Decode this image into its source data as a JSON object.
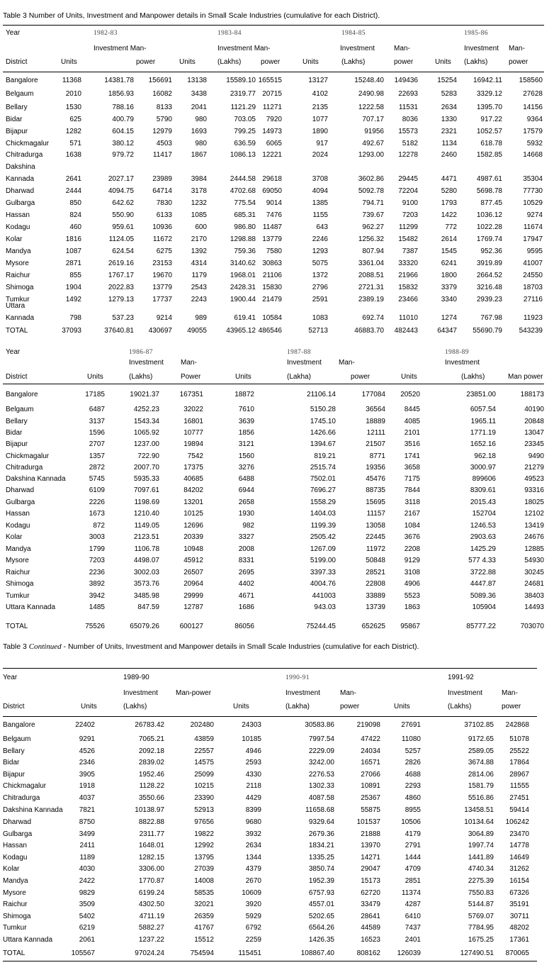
{
  "caption1": "Table 3 Number of Units, Investment and Manpower details in Small Scale Industries (cumulative for each District).",
  "caption2_prefix": "Table 3",
  "caption2_em": "Continued",
  "caption2_rest": "- Number of Units, Investment and Manpower details in Small Scale Industries (cumulative for each District).",
  "labels": {
    "year": "Year",
    "district": "District",
    "units": "Units",
    "investment": "Investment",
    "investment_man": "Investment Man-",
    "man": "Man-",
    "man_power_hyph": "Man-power",
    "power": "power",
    "power_cap": "Power",
    "man_power": "Man power",
    "lakhs": "(Lakhs)",
    "lakha": "(Lakha)"
  },
  "years": [
    "1982-83",
    "1983-84",
    "1984-85",
    "1985-86",
    "1986-87",
    "1987-88",
    "1988-89",
    "1989-90",
    "1990-91",
    "1991-92"
  ],
  "section1_rows": [
    {
      "district": "Bangalore",
      "v": [
        "11368",
        "14381.78",
        "156691",
        "13138",
        "15589.10",
        "165515",
        "13127",
        "15248.40",
        "149436",
        "15254",
        "16942.11",
        "158560"
      ]
    },
    {
      "district": "Belgaum",
      "v": [
        "2010",
        "1856.93",
        "16082",
        "3438",
        "2319.77",
        "20715",
        "4102",
        "2490.98",
        "22693",
        "5283",
        "3329.12",
        "27628"
      ]
    },
    {
      "district": "Bellary",
      "v": [
        "1530",
        "788.16",
        "8133",
        "2041",
        "1121.29",
        "11271",
        "2135",
        "1222.58",
        "11531",
        "2634",
        "1395.70",
        "14156"
      ]
    },
    {
      "district": "Bidar",
      "v": [
        "625",
        "400.79",
        "5790",
        "980",
        "703.05",
        "7920",
        "1077",
        "707.17",
        "8036",
        "1330",
        "917.22",
        "9364"
      ]
    },
    {
      "district": "Bijapur",
      "v": [
        "1282",
        "604.15",
        "12979",
        "1693",
        "799.25",
        "14973",
        "1890",
        "91956",
        "15573",
        "2321",
        "1052.57",
        "17579"
      ]
    },
    {
      "district": "Chickmagalur",
      "v": [
        "571",
        "380.12",
        "4503",
        "980",
        "636.59",
        "6065",
        "917",
        "492.67",
        "5182",
        "1134",
        "618.78",
        "5932"
      ]
    },
    {
      "district": "Chitradurga",
      "v": [
        "1638",
        "979.72",
        "11417",
        "1867",
        "1086.13",
        "12221",
        "2024",
        "1293.00",
        "12278",
        "2460",
        "1582.85",
        "14668"
      ]
    },
    {
      "district": "Dakshina",
      "v": [
        "",
        "",
        "",
        "",
        "",
        "",
        "",
        "",
        "",
        "",
        "",
        ""
      ]
    },
    {
      "district": "Kannada",
      "v": [
        "2641",
        "2027.17",
        "23989",
        "3984",
        "2444.58",
        "29618",
        "3708",
        "3602.86",
        "29445",
        "4471",
        "4987.61",
        "35304"
      ]
    },
    {
      "district": "Dharwad",
      "v": [
        "2444",
        "4094.75",
        "64714",
        "3178",
        "4702.68",
        "69050",
        "4094",
        "5092.78",
        "72204",
        "5280",
        "5698.78",
        "77730"
      ]
    },
    {
      "district": "Gulbarga",
      "v": [
        "850",
        "642.62",
        "7830",
        "1232",
        "775.54",
        "9014",
        "1385",
        "794.71",
        "9100",
        "1793",
        "877.45",
        "10529"
      ]
    },
    {
      "district": "Hassan",
      "v": [
        "824",
        "550.90",
        "6133",
        "1085",
        "685.31",
        "7476",
        "1155",
        "739.67",
        "7203",
        "1422",
        "1036.12",
        "9274"
      ]
    },
    {
      "district": "Kodagu",
      "v": [
        "460",
        "959.61",
        "10936",
        "600",
        "986.80",
        "11487",
        "643",
        "962.27",
        "11299",
        "772",
        "1022.28",
        "11674"
      ]
    },
    {
      "district": "Kolar",
      "v": [
        "1816",
        "1124.05",
        "11672",
        "2170",
        "1298.88",
        "13779",
        "2246",
        "1256.32",
        "15482",
        "2614",
        "1769.74",
        "17947"
      ]
    },
    {
      "district": "Mandya",
      "v": [
        "1087",
        "624.54",
        "6275",
        "1392",
        "759.36",
        "7580",
        "1293",
        "807.94",
        "7387",
        "1545",
        "952.36",
        "9595"
      ]
    },
    {
      "district": "Mysore",
      "v": [
        "2871",
        "2619.16",
        "23153",
        "4314",
        "3140.62",
        "30863",
        "5075",
        "3361.04",
        "33320",
        "6241",
        "3919.89",
        "41007"
      ]
    },
    {
      "district": "Raichur",
      "v": [
        "855",
        "1767.17",
        "19670",
        "1179",
        "1968.01",
        "21106",
        "1372",
        "2088.51",
        "21966",
        "1800",
        "2664.52",
        "24550"
      ]
    },
    {
      "district": "Shimoga",
      "v": [
        "1904",
        "2022.83",
        "13779",
        "2543",
        "2428.31",
        "15830",
        "2796",
        "2721.31",
        "15832",
        "3379",
        "3216.48",
        "18703"
      ]
    },
    {
      "district": "Tumkur",
      "v": [
        "1492",
        "1279.13",
        "17737",
        "2243",
        "1900.44",
        "21479",
        "2591",
        "2389.19",
        "23466",
        "3340",
        "2939.23",
        "27116"
      ]
    },
    {
      "district": "Uttara",
      "v": [
        "",
        "",
        "",
        "",
        "",
        "",
        "",
        "",
        "",
        "",
        "",
        ""
      ]
    },
    {
      "district": "Kannada",
      "v": [
        "798",
        "537.23",
        "9214",
        "989",
        "619.41",
        "10584",
        "1083",
        "692.74",
        "11010",
        "1274",
        "767.98",
        "11923"
      ]
    },
    {
      "district": "TOTAL",
      "v": [
        "37093",
        "37640.81",
        "430697",
        "49055",
        "43965.12",
        "486546",
        "52713",
        "46883.70",
        "482443",
        "64347",
        "55690.79",
        "543239"
      ]
    }
  ],
  "section2_rows": [
    {
      "district": "Bangalore",
      "v": [
        "17185",
        "19021.37",
        "167351",
        "18872",
        "21106.14",
        "177084",
        "20520",
        "23851.00",
        "188173"
      ]
    },
    {
      "district": "Belgaum",
      "v": [
        "6487",
        "4252.23",
        "32022",
        "7610",
        "5150.28",
        "36564",
        "8445",
        "6057.54",
        "40190"
      ]
    },
    {
      "district": "Bellary",
      "v": [
        "3137",
        "1543.34",
        "16801",
        "3639",
        "1745.10",
        "18889",
        "4085",
        "1965.11",
        "20848"
      ]
    },
    {
      "district": "Bidar",
      "v": [
        "1596",
        "1065.92",
        "10777",
        "1856",
        "1426.66",
        "12111",
        "2101",
        "1771.19",
        "13047"
      ]
    },
    {
      "district": "Bijapur",
      "v": [
        "2707",
        "1237.00",
        "19894",
        "3121",
        "1394.67",
        "21507",
        "3516",
        "1652.16",
        "23345"
      ]
    },
    {
      "district": "Chickmagalur",
      "v": [
        "1357",
        "722.90",
        "7542",
        "1560",
        "819.21",
        "8771",
        "1741",
        "962.18",
        "9490"
      ]
    },
    {
      "district": "Chitradurga",
      "v": [
        "2872",
        "2007.70",
        "17375",
        "3276",
        "2515.74",
        "19356",
        "3658",
        "3000.97",
        "21279"
      ]
    },
    {
      "district": "Dakshina Kannada",
      "v": [
        "5745",
        "5935.33",
        "40685",
        "6488",
        "7502.01",
        "45476",
        "7175",
        "899606",
        "49523"
      ]
    },
    {
      "district": "Dharwad",
      "v": [
        "6109",
        "7097.61",
        "84202",
        "6944",
        "7696.27",
        "88735",
        "7844",
        "8309.61",
        "93316"
      ]
    },
    {
      "district": "Gulbarga",
      "v": [
        "2226",
        "1198.69",
        "13201",
        "2658",
        "1558.29",
        "15695",
        "3118",
        "2015.43",
        "18025"
      ]
    },
    {
      "district": "Hassan",
      "v": [
        "1673",
        "1210.40",
        "10125",
        "1930",
        "1404.03",
        "11157",
        "2167",
        "152704",
        "12102"
      ]
    },
    {
      "district": "Kodagu",
      "v": [
        "872",
        "1149.05",
        "12696",
        "982",
        "1199.39",
        "13058",
        "1084",
        "1246.53",
        "13419"
      ]
    },
    {
      "district": "Kolar",
      "v": [
        "3003",
        "2123.51",
        "20339",
        "3327",
        "2505.42",
        "22445",
        "3676",
        "2903.63",
        "24676"
      ]
    },
    {
      "district": "Mandya",
      "v": [
        "1799",
        "1106.78",
        "10948",
        "2008",
        "1267.09",
        "11972",
        "2208",
        "1425.29",
        "12885"
      ]
    },
    {
      "district": "Mysore",
      "v": [
        "7203",
        "4498.07",
        "45912",
        "8331",
        "5199.00",
        "50848",
        "9129",
        "577 4.33",
        "54930"
      ]
    },
    {
      "district": "Raichur",
      "v": [
        "2236",
        "3002.03",
        "26507",
        "2695",
        "3397.33",
        "28521",
        "3108",
        "3722.88",
        "30245"
      ]
    },
    {
      "district": "Shimoga",
      "v": [
        "3892",
        "3573.76",
        "20964",
        "4402",
        "4004.76",
        "22808",
        "4906",
        "4447.87",
        "24681"
      ]
    },
    {
      "district": "Tumkur",
      "v": [
        "3942",
        "3485.98",
        "29999",
        "4671",
        "441003",
        "33889",
        "5523",
        "5089.36",
        "38403"
      ]
    },
    {
      "district": "Uttara Kannada",
      "v": [
        "1485",
        "847.59",
        "12787",
        "1686",
        "943.03",
        "13739",
        "1863",
        "105904",
        "14493"
      ]
    },
    {
      "district": "TOTAL",
      "v": [
        "75526",
        "65079.26",
        "600127",
        "86056",
        "75244.45",
        "652625",
        "95867",
        "85777.22",
        "703070"
      ]
    }
  ],
  "section3_rows": [
    {
      "district": "Bangalore",
      "v": [
        "22402",
        "26783.42",
        "202480",
        "24303",
        "30583.86",
        "219098",
        "27691",
        "37102.85",
        "242868"
      ]
    },
    {
      "district": "Belgaum",
      "v": [
        "9291",
        "7065.21",
        "43859",
        "10185",
        "7997.54",
        "47422",
        "11080",
        "9172.65",
        "51078"
      ]
    },
    {
      "district": "Bellary",
      "v": [
        "4526",
        "2092.18",
        "22557",
        "4946",
        "2229.09",
        "24034",
        "5257",
        "2589.05",
        "25522"
      ]
    },
    {
      "district": "Bidar",
      "v": [
        "2346",
        "2839.02",
        "14575",
        "2593",
        "3242.00",
        "16571",
        "2826",
        "3674.88",
        "17864"
      ]
    },
    {
      "district": "Bijapur",
      "v": [
        "3905",
        "1952.46",
        "25099",
        "4330",
        "2276.53",
        "27066",
        "4688",
        "2814.06",
        "28967"
      ]
    },
    {
      "district": "Chickmagalur",
      "v": [
        "1918",
        "1128.22",
        "10215",
        "2118",
        "1302.33",
        "10891",
        "2293",
        "1581.79",
        "11555"
      ]
    },
    {
      "district": "Chitradurga",
      "v": [
        "4037",
        "3550.66",
        "23390",
        "4429",
        "4087.58",
        "25367",
        "4860",
        "5516.86",
        "27451"
      ]
    },
    {
      "district": "Dakshina Kannada",
      "v": [
        "7821",
        "10138.97",
        "52913",
        "8399",
        "11658.68",
        "55875",
        "8955",
        "13458.51",
        "59414"
      ]
    },
    {
      "district": "Dharwad",
      "v": [
        "8750",
        "8822.88",
        "97656",
        "9680",
        "9329.64",
        "101537",
        "10506",
        "10134.64",
        "106242"
      ]
    },
    {
      "district": "Gulbarga",
      "v": [
        "3499",
        "2311.77",
        "19822",
        "3932",
        "2679.36",
        "21888",
        "4179",
        "3064.89",
        "23470"
      ]
    },
    {
      "district": "Hassan",
      "v": [
        "2411",
        "1648.01",
        "12992",
        "2634",
        "1834.21",
        "13970",
        "2791",
        "1997.74",
        "14778"
      ]
    },
    {
      "district": "Kodagu",
      "v": [
        "1189",
        "1282.15",
        "13795",
        "1344",
        "1335.25",
        "14271",
        "1444",
        "1441.89",
        "14649"
      ]
    },
    {
      "district": "Kolar",
      "v": [
        "4030",
        "3306.00",
        "27039",
        "4379",
        "3850.74",
        "29047",
        "4709",
        "4740.34",
        "31262"
      ]
    },
    {
      "district": "Mandya",
      "v": [
        "2422",
        "1770.87",
        "14008",
        "2670",
        "1952.39",
        "15173",
        "2851",
        "2275.39",
        "16154"
      ]
    },
    {
      "district": "Mysore",
      "v": [
        "9829",
        "6199.24",
        "58535",
        "10609",
        "6757.93",
        "62720",
        "11374",
        "7550.83",
        "67326"
      ]
    },
    {
      "district": "Raichur",
      "v": [
        "3509",
        "4302.50",
        "32021",
        "3920",
        "4557.01",
        "33479",
        "4287",
        "5144.87",
        "35191"
      ]
    },
    {
      "district": "Shimoga",
      "v": [
        "5402",
        "4711.19",
        "26359",
        "5929",
        "5202.65",
        "28641",
        "6410",
        "5769.07",
        "30711"
      ]
    },
    {
      "district": "Tumkur",
      "v": [
        "6219",
        "5882.27",
        "41767",
        "6792",
        "6564.26",
        "44589",
        "7437",
        "7784.95",
        "48202"
      ]
    },
    {
      "district": "Uttara Kannada",
      "v": [
        "2061",
        "1237.22",
        "15512",
        "2259",
        "1426.35",
        "16523",
        "2401",
        "1675.25",
        "17361"
      ]
    },
    {
      "district": "TOTAL",
      "v": [
        "105567",
        "97024.24",
        "754594",
        "115451",
        "108867.40",
        "808162",
        "126039",
        "127490.51",
        "870065"
      ]
    }
  ]
}
